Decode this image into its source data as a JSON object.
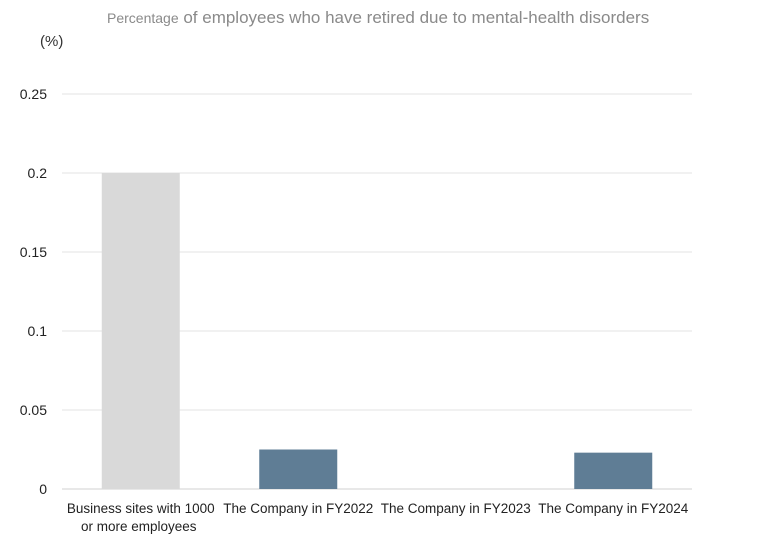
{
  "chart_data": {
    "type": "bar",
    "title_prefix": "Percentage",
    "title_rest": " of employees who have retired due to mental-health disorders",
    "unit_label": "(%)",
    "categories": [
      [
        "Business sites with 1000",
        "or more employees"
      ],
      [
        "The Company in FY2022"
      ],
      [
        "The Company in FY2023"
      ],
      [
        "The Company in FY2024"
      ]
    ],
    "values": [
      0.2,
      0.025,
      0,
      0.023
    ],
    "colors": [
      "#d9d9d9",
      "#5f7d95",
      "#5f7d95",
      "#5f7d95"
    ],
    "ylim": [
      0,
      0.25
    ],
    "yticks": [
      "0",
      "0.05",
      "0.1",
      "0.15",
      "0.2",
      "0.25"
    ],
    "grid": true,
    "legend": "none"
  }
}
